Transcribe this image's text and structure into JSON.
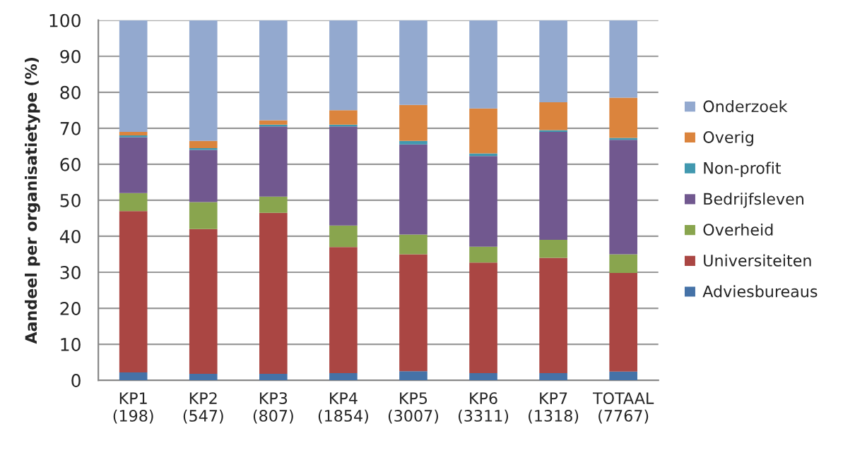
{
  "chart_data": {
    "type": "bar",
    "stacked": true,
    "ylabel": "Aandeel per organisatietype (%)",
    "categories": [
      "KP1\n(198)",
      "KP2\n(547)",
      "KP3\n(807)",
      "KP4\n(1854)",
      "KP5\n(3007)",
      "KP6\n(3311)",
      "KP7\n(1318)",
      "TOTAAL\n(7767)"
    ],
    "series": [
      {
        "name": "Adviesbureaus",
        "color": "#4572a7",
        "values": [
          2.2,
          1.8,
          1.8,
          2,
          2.5,
          2,
          2,
          2.4
        ]
      },
      {
        "name": "Universiteiten",
        "color": "#aa4643",
        "values": [
          44.8,
          40.2,
          44.7,
          35,
          32.5,
          30.7,
          32,
          27.4
        ]
      },
      {
        "name": "Overheid",
        "color": "#89a54e",
        "values": [
          5,
          7.5,
          4.5,
          6,
          5.5,
          4.4,
          5,
          5.2
        ]
      },
      {
        "name": "Bedrijfsleven",
        "color": "#71588f",
        "values": [
          15.5,
          14.5,
          19.5,
          27.5,
          25,
          25.2,
          30,
          31.8
        ]
      },
      {
        "name": "Non-profit",
        "color": "#4198af",
        "values": [
          0.5,
          0.5,
          0.5,
          0.5,
          1,
          0.7,
          0.5,
          0.5
        ]
      },
      {
        "name": "Overig",
        "color": "#db843d",
        "values": [
          1,
          2,
          1.2,
          4,
          10,
          12.5,
          7.7,
          11.2
        ]
      },
      {
        "name": "Onderzoek",
        "color": "#93a9cf",
        "values": [
          31,
          33.5,
          27.8,
          25,
          23.5,
          24.5,
          22.8,
          21.5
        ]
      }
    ],
    "ylim": [
      0,
      100
    ],
    "yticks": [
      0,
      10,
      20,
      30,
      40,
      50,
      60,
      70,
      80,
      90,
      100
    ],
    "grid": "y",
    "legend": "right"
  }
}
